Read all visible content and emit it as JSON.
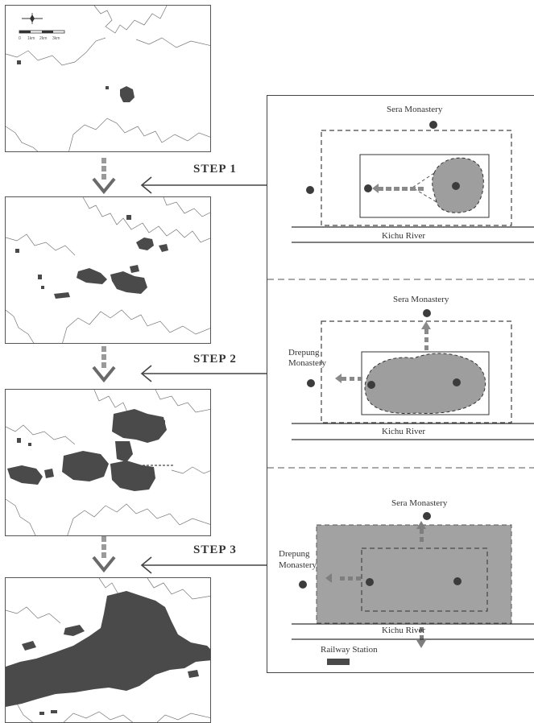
{
  "steps": [
    {
      "label": "STEP 1"
    },
    {
      "label": "STEP 2"
    },
    {
      "label": "STEP 3"
    }
  ],
  "scale_bar": {
    "ticks": [
      "0",
      "1km",
      "2km",
      "3km"
    ]
  },
  "schemas": [
    {
      "top_label": "Sera Monastery",
      "river_label": "Kichu River"
    },
    {
      "top_label": "Sera Monastery",
      "left_label_line1": "Drepung",
      "left_label_line2": "Monastery",
      "river_label": "Kichu River"
    },
    {
      "top_label": "Sera Monastery",
      "left_label_line1": "Drepung",
      "left_label_line2": "Monastery",
      "river_label": "Kichu River",
      "legend_label": "Railway Station"
    }
  ],
  "colors": {
    "urban": "#4a4a4a",
    "growth_area": "#9e9e9e",
    "arrow_gray": "#7a7a7a",
    "outline": "#555555",
    "point": "#3c3c3c"
  }
}
